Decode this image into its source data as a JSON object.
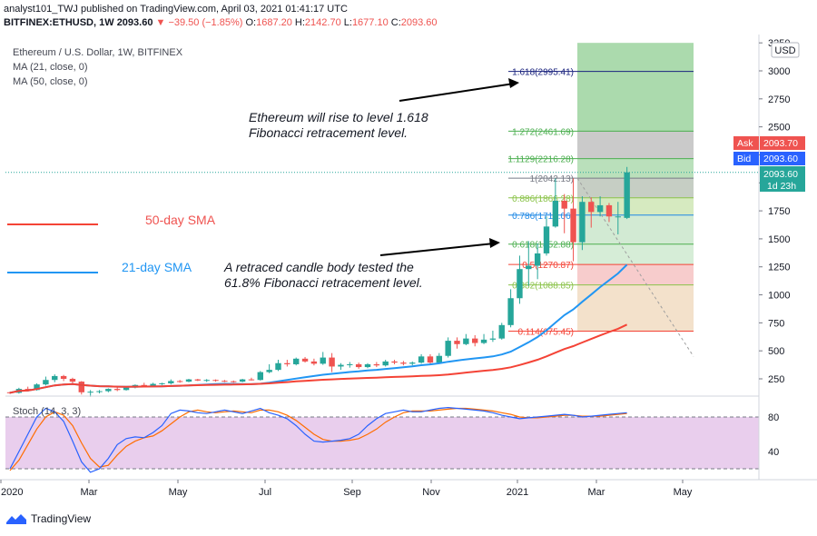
{
  "header": {
    "publisher_line": "analyst101_TWJ published on TradingView.com, April 03, 2021 01:41:17 UTC",
    "symbol": "BITFINEX:ETHUSD, 1W",
    "last": "2093.60",
    "change": "▼ −39.50 (−1.85%)",
    "o_label": "O:",
    "o": "1687.20",
    "h_label": "H:",
    "h": "2142.70",
    "l_label": "L:",
    "l": "1677.10",
    "c_label": "C:",
    "c": "2093.60"
  },
  "legend": {
    "title": "Ethereum / U.S. Dollar, 1W, BITFINEX",
    "ma21": "MA (21, close, 0)",
    "ma50": "MA (50, close, 0)"
  },
  "price_scale": {
    "currency": "USD",
    "ask_label": "Ask",
    "ask": "2093.70",
    "bid_label": "Bid",
    "bid": "2093.60",
    "last": "2093.60",
    "countdown": "1d 23h"
  },
  "annotations": {
    "top_text_1": "Ethereum will rise to level 1.618",
    "top_text_2": "Fibonacci retracement level.",
    "mid_text_1": "A retraced candle body tested the",
    "mid_text_2": "61.8% Fibonacci retracement level.",
    "sma50": "50-day SMA",
    "sma21": "21-day SMA"
  },
  "stoch": {
    "label": "Stoch (14, 3, 3)",
    "upper": "80",
    "lower": "40",
    "k_color": "#2962ff",
    "d_color": "#ff6d00",
    "fill_color": "#e1bee7"
  },
  "branding": {
    "name": "TradingView"
  },
  "colors": {
    "up": "#26a69a",
    "down": "#ef5350",
    "ma21": "#2196f3",
    "ma50": "#f44336",
    "fib_line": "#1a237e"
  },
  "chart_data": {
    "type": "candlestick",
    "title": "Ethereum / U.S. Dollar, 1W, BITFINEX",
    "y_ticks": [
      "3250",
      "3000",
      "2750",
      "2500",
      "2250",
      "2000",
      "1750",
      "1500",
      "1250",
      "1000",
      "750",
      "500",
      "250"
    ],
    "ylim": [
      0,
      3260
    ],
    "x_ticks": [
      "2020",
      "Mar",
      "May",
      "Jul",
      "Sep",
      "Nov",
      "2021",
      "Mar",
      "May"
    ],
    "fib_levels": [
      {
        "label": "1.618(2995.41)",
        "value": 2995.41,
        "color": "#1a237e"
      },
      {
        "label": "1.272(2461.69)",
        "value": 2461.69,
        "color": "#4caf50"
      },
      {
        "label": "1.1129(2216.28)",
        "value": 2216.28,
        "color": "#4caf50"
      },
      {
        "label": "1(2042.13)",
        "value": 2042.13,
        "color": "#787b86"
      },
      {
        "label": "0.886(1866.28)",
        "value": 1866.28,
        "color": "#8bc34a"
      },
      {
        "label": "0.786(1712.06)",
        "value": 1712.06,
        "color": "#1e88e5"
      },
      {
        "label": "0.618(1452.88)",
        "value": 1452.88,
        "color": "#4caf50"
      },
      {
        "label": "0.5(1270.87)",
        "value": 1270.87,
        "color": "#f44336"
      },
      {
        "label": "0.382(1088.85)",
        "value": 1088.85,
        "color": "#8bc34a"
      },
      {
        "label": "0.114(675.45)",
        "value": 675.45,
        "color": "#f44336"
      }
    ],
    "candles": [
      [
        130,
        135,
        115,
        125
      ],
      [
        125,
        170,
        118,
        160
      ],
      [
        160,
        180,
        140,
        150
      ],
      [
        150,
        210,
        145,
        200
      ],
      [
        200,
        270,
        190,
        240
      ],
      [
        240,
        290,
        220,
        275
      ],
      [
        275,
        285,
        230,
        250
      ],
      [
        250,
        260,
        210,
        225
      ],
      [
        225,
        230,
        110,
        130
      ],
      [
        130,
        150,
        90,
        135
      ],
      [
        135,
        150,
        120,
        140
      ],
      [
        140,
        165,
        130,
        160
      ],
      [
        160,
        175,
        140,
        150
      ],
      [
        150,
        180,
        145,
        172
      ],
      [
        172,
        200,
        165,
        195
      ],
      [
        195,
        215,
        175,
        185
      ],
      [
        185,
        215,
        180,
        205
      ],
      [
        205,
        215,
        195,
        210
      ],
      [
        210,
        245,
        200,
        230
      ],
      [
        230,
        240,
        215,
        225
      ],
      [
        225,
        250,
        220,
        245
      ],
      [
        245,
        250,
        230,
        235
      ],
      [
        235,
        248,
        222,
        240
      ],
      [
        240,
        245,
        225,
        232
      ],
      [
        232,
        240,
        220,
        228
      ],
      [
        228,
        235,
        215,
        225
      ],
      [
        225,
        250,
        220,
        245
      ],
      [
        245,
        260,
        235,
        240
      ],
      [
        240,
        320,
        235,
        310
      ],
      [
        310,
        380,
        300,
        330
      ],
      [
        330,
        420,
        320,
        390
      ],
      [
        390,
        420,
        360,
        380
      ],
      [
        380,
        440,
        370,
        430
      ],
      [
        430,
        445,
        395,
        405
      ],
      [
        405,
        430,
        370,
        385
      ],
      [
        385,
        490,
        375,
        440
      ],
      [
        440,
        480,
        310,
        360
      ],
      [
        360,
        390,
        330,
        375
      ],
      [
        375,
        400,
        350,
        380
      ],
      [
        380,
        395,
        340,
        355
      ],
      [
        355,
        390,
        345,
        380
      ],
      [
        380,
        400,
        355,
        370
      ],
      [
        370,
        420,
        360,
        405
      ],
      [
        405,
        420,
        380,
        395
      ],
      [
        395,
        410,
        370,
        385
      ],
      [
        385,
        405,
        370,
        395
      ],
      [
        395,
        470,
        385,
        450
      ],
      [
        450,
        470,
        380,
        395
      ],
      [
        395,
        480,
        390,
        455
      ],
      [
        455,
        620,
        440,
        590
      ],
      [
        590,
        620,
        520,
        560
      ],
      [
        560,
        650,
        550,
        610
      ],
      [
        610,
        640,
        540,
        570
      ],
      [
        570,
        650,
        560,
        600
      ],
      [
        600,
        680,
        580,
        610
      ],
      [
        610,
        750,
        600,
        730
      ],
      [
        730,
        1050,
        710,
        970
      ],
      [
        970,
        1350,
        920,
        1230
      ],
      [
        1230,
        1480,
        1080,
        1260
      ],
      [
        1260,
        1460,
        1140,
        1370
      ],
      [
        1370,
        1700,
        1350,
        1610
      ],
      [
        1610,
        2040,
        1600,
        1840
      ],
      [
        1840,
        1900,
        1550,
        1770
      ],
      [
        1770,
        2040,
        1300,
        1470
      ],
      [
        1470,
        1880,
        1400,
        1830
      ],
      [
        1830,
        1870,
        1600,
        1740
      ],
      [
        1740,
        1880,
        1700,
        1800
      ],
      [
        1800,
        1820,
        1650,
        1700
      ],
      [
        1700,
        1830,
        1540,
        1700
      ],
      [
        1687,
        2142,
        1677,
        2094
      ]
    ],
    "stoch_k": [
      20,
      40,
      60,
      80,
      90,
      86,
      75,
      52,
      28,
      16,
      20,
      32,
      48,
      55,
      57,
      56,
      62,
      70,
      84,
      88,
      87,
      85,
      84,
      86,
      88,
      86,
      84,
      87,
      90,
      85,
      82,
      78,
      70,
      60,
      52,
      51,
      52,
      53,
      55,
      60,
      70,
      78,
      84,
      86,
      88,
      86,
      86,
      88,
      90,
      91,
      90,
      89,
      88,
      87,
      85,
      82,
      80,
      78,
      79,
      80,
      81,
      82,
      83,
      82,
      80,
      81,
      82,
      83,
      84,
      85
    ],
    "stoch_d": [
      18,
      30,
      48,
      66,
      80,
      86,
      82,
      70,
      50,
      32,
      22,
      24,
      36,
      46,
      52,
      56,
      58,
      64,
      72,
      80,
      86,
      88,
      86,
      85,
      86,
      87,
      86,
      85,
      88,
      88,
      86,
      82,
      76,
      68,
      60,
      54,
      52,
      52,
      53,
      55,
      60,
      66,
      74,
      80,
      85,
      87,
      87,
      87,
      88,
      89,
      90,
      90,
      89,
      88,
      87,
      85,
      83,
      80,
      79,
      79,
      80,
      81,
      82,
      82,
      81,
      81,
      81,
      82,
      83,
      84
    ]
  }
}
